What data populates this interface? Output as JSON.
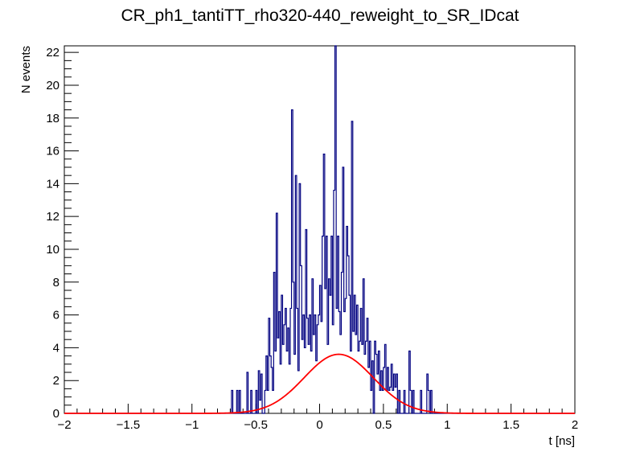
{
  "chart_data": {
    "type": "histogram",
    "title": "CR_ph1_tantiTT_rho320-440_reweight_to_SR_IDcat",
    "xlabel": "t [ns]",
    "ylabel": "N events",
    "xlim": [
      -2,
      2
    ],
    "ylim": [
      0,
      22.4
    ],
    "x_ticks": [
      -2,
      -1.5,
      -1,
      -0.5,
      0,
      0.5,
      1,
      1.5,
      2
    ],
    "x_tick_labels": [
      "−2",
      "−1.5",
      "−1",
      "−0.5",
      "0",
      "0.5",
      "1",
      "1.5",
      "2"
    ],
    "y_ticks": [
      0,
      2,
      4,
      6,
      8,
      10,
      12,
      14,
      16,
      18,
      20,
      22
    ],
    "y_tick_labels": [
      "0",
      "2",
      "4",
      "6",
      "8",
      "10",
      "12",
      "14",
      "16",
      "18",
      "20",
      "22"
    ],
    "grid": false,
    "legend": "none",
    "histogram": {
      "bin_width": 0.01,
      "bins": [
        [
          -0.69,
          1.4
        ],
        [
          -0.68,
          0
        ],
        [
          -0.65,
          1.4
        ],
        [
          -0.64,
          0
        ],
        [
          -0.63,
          1.4
        ],
        [
          -0.62,
          0
        ],
        [
          -0.57,
          2.5
        ],
        [
          -0.56,
          0
        ],
        [
          -0.54,
          1.4
        ],
        [
          -0.53,
          0
        ],
        [
          -0.5,
          1.4
        ],
        [
          -0.49,
          0
        ],
        [
          -0.48,
          2.6
        ],
        [
          -0.47,
          0.8
        ],
        [
          -0.46,
          2.4
        ],
        [
          -0.45,
          0
        ],
        [
          -0.43,
          1.4
        ],
        [
          -0.42,
          3.5
        ],
        [
          -0.41,
          1.4
        ],
        [
          -0.4,
          5.8
        ],
        [
          -0.39,
          3.5
        ],
        [
          -0.38,
          2.8
        ],
        [
          -0.37,
          1.4
        ],
        [
          -0.36,
          8.6
        ],
        [
          -0.35,
          3.8
        ],
        [
          -0.34,
          12.2
        ],
        [
          -0.33,
          4.6
        ],
        [
          -0.32,
          6.2
        ],
        [
          -0.31,
          3.0
        ],
        [
          -0.3,
          7.2
        ],
        [
          -0.29,
          4.2
        ],
        [
          -0.28,
          5.4
        ],
        [
          -0.27,
          6.4
        ],
        [
          -0.26,
          3.8
        ],
        [
          -0.25,
          5.2
        ],
        [
          -0.24,
          3.0
        ],
        [
          -0.23,
          6.4
        ],
        [
          -0.22,
          18.5
        ],
        [
          -0.21,
          8.0
        ],
        [
          -0.2,
          3.6
        ],
        [
          -0.19,
          14.5
        ],
        [
          -0.18,
          6.4
        ],
        [
          -0.17,
          2.6
        ],
        [
          -0.16,
          14.0
        ],
        [
          -0.15,
          9.0
        ],
        [
          -0.14,
          4.5
        ],
        [
          -0.13,
          6.0
        ],
        [
          -0.12,
          4.0
        ],
        [
          -0.11,
          11.2
        ],
        [
          -0.1,
          5.8
        ],
        [
          -0.09,
          4.2
        ],
        [
          -0.08,
          6.0
        ],
        [
          -0.07,
          3.8
        ],
        [
          -0.06,
          8.2
        ],
        [
          -0.05,
          4.8
        ],
        [
          -0.04,
          6.0
        ],
        [
          -0.03,
          3.2
        ],
        [
          -0.02,
          5.4
        ],
        [
          -0.01,
          6.0
        ],
        [
          0.0,
          7.8
        ],
        [
          0.01,
          5.6
        ],
        [
          0.02,
          10.8
        ],
        [
          0.03,
          15.8
        ],
        [
          0.04,
          7.6
        ],
        [
          0.05,
          10.8
        ],
        [
          0.06,
          4.2
        ],
        [
          0.07,
          8.2
        ],
        [
          0.08,
          7.2
        ],
        [
          0.09,
          10.8
        ],
        [
          0.1,
          5.4
        ],
        [
          0.11,
          13.6
        ],
        [
          0.12,
          22.4
        ],
        [
          0.13,
          6.4
        ],
        [
          0.14,
          10.8
        ],
        [
          0.15,
          6.2
        ],
        [
          0.16,
          4.8
        ],
        [
          0.17,
          8.6
        ],
        [
          0.18,
          15.0
        ],
        [
          0.19,
          6.2
        ],
        [
          0.2,
          7.0
        ],
        [
          0.21,
          11.4
        ],
        [
          0.22,
          9.6
        ],
        [
          0.23,
          7.2
        ],
        [
          0.24,
          3.8
        ],
        [
          0.25,
          17.8
        ],
        [
          0.26,
          5.0
        ],
        [
          0.27,
          7.2
        ],
        [
          0.28,
          4.8
        ],
        [
          0.29,
          6.6
        ],
        [
          0.3,
          3.8
        ],
        [
          0.31,
          4.4
        ],
        [
          0.32,
          6.4
        ],
        [
          0.33,
          4.2
        ],
        [
          0.34,
          8.2
        ],
        [
          0.35,
          3.6
        ],
        [
          0.36,
          4.4
        ],
        [
          0.37,
          5.8
        ],
        [
          0.38,
          2.8
        ],
        [
          0.39,
          4.4
        ],
        [
          0.4,
          1.4
        ],
        [
          0.41,
          3.2
        ],
        [
          0.42,
          0
        ],
        [
          0.43,
          4.4
        ],
        [
          0.44,
          3.6
        ],
        [
          0.45,
          2.4
        ],
        [
          0.46,
          3.8
        ],
        [
          0.47,
          1.4
        ],
        [
          0.48,
          2.6
        ],
        [
          0.49,
          1.4
        ],
        [
          0.5,
          2.8
        ],
        [
          0.51,
          4.2
        ],
        [
          0.52,
          1.4
        ],
        [
          0.53,
          2.8
        ],
        [
          0.54,
          1.4
        ],
        [
          0.55,
          1.6
        ],
        [
          0.56,
          3.0
        ],
        [
          0.57,
          1.4
        ],
        [
          0.58,
          2.4
        ],
        [
          0.59,
          1.6
        ],
        [
          0.6,
          2.4
        ],
        [
          0.61,
          0
        ],
        [
          0.62,
          1.4
        ],
        [
          0.63,
          0
        ],
        [
          0.66,
          1.4
        ],
        [
          0.67,
          0
        ],
        [
          0.7,
          3.8
        ],
        [
          0.71,
          1.4
        ],
        [
          0.72,
          0
        ],
        [
          0.73,
          1.4
        ],
        [
          0.74,
          0
        ],
        [
          0.79,
          1.4
        ],
        [
          0.8,
          0
        ],
        [
          0.84,
          2.4
        ],
        [
          0.85,
          1.4
        ],
        [
          0.86,
          0
        ],
        [
          0.87,
          1.4
        ],
        [
          0.88,
          0
        ]
      ]
    },
    "fit_curve": {
      "type": "gaussian",
      "amplitude": 3.6,
      "mean": 0.15,
      "sigma": 0.27
    },
    "colors": {
      "histogram": "#000080",
      "fit": "#ff0000",
      "axis": "#000000"
    }
  }
}
